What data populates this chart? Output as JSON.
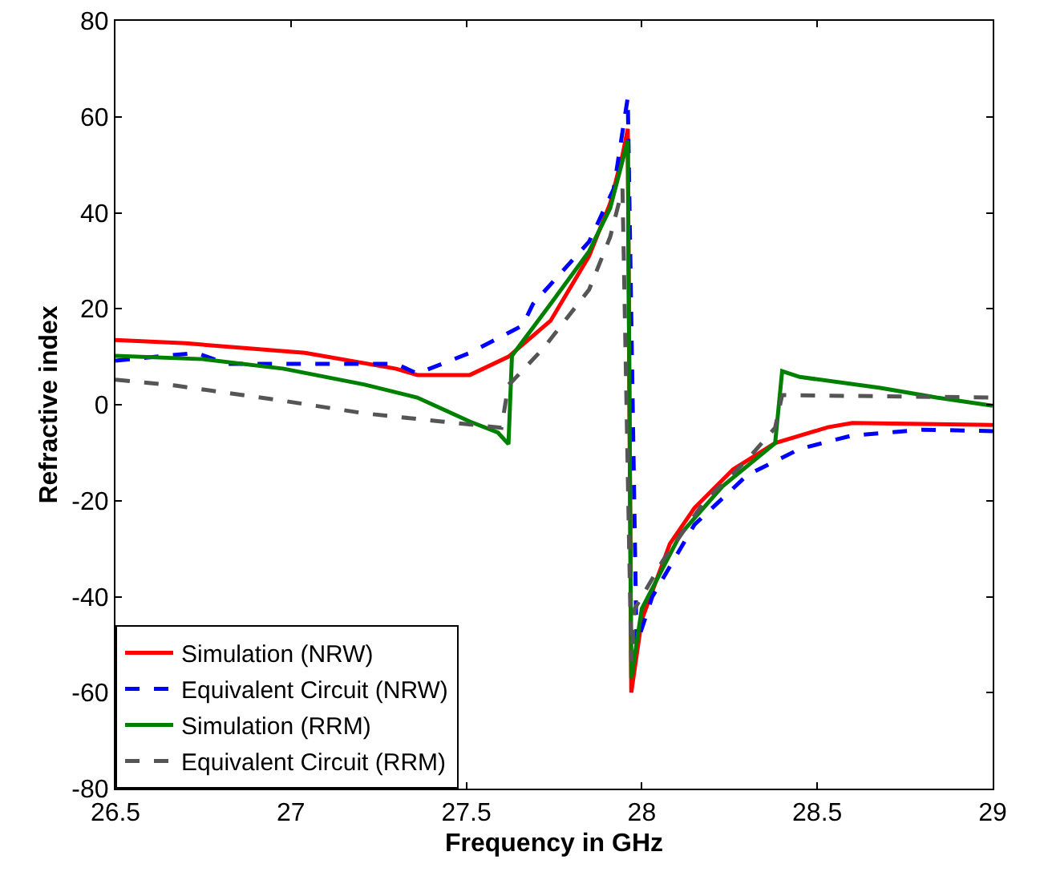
{
  "chart_data": {
    "type": "line",
    "xlabel": "Frequency in GHz",
    "ylabel": "Refractive index",
    "xlim": [
      26.5,
      29
    ],
    "xticks": [
      26.5,
      27,
      27.5,
      28,
      28.5,
      29
    ],
    "ylim": [
      -80,
      80
    ],
    "yticks": [
      -80,
      -60,
      -40,
      -20,
      0,
      20,
      40,
      60,
      80
    ],
    "grid": false,
    "legend": "bottom left",
    "marker": "none",
    "series": [
      {
        "name": "Simulation (NRW)",
        "color": "#ff0000",
        "line_style": "solid",
        "x": [
          26.5,
          26.7,
          27.04,
          27.3,
          27.36,
          27.51,
          27.62,
          27.74,
          27.85,
          27.91,
          27.945,
          27.96,
          27.97,
          28.0,
          28.08,
          28.15,
          28.26,
          28.38,
          28.53,
          28.6,
          29
        ],
        "values": [
          13.5,
          12.8,
          10.8,
          7.5,
          6.2,
          6.2,
          10,
          17.5,
          31,
          42,
          52,
          57.5,
          -60,
          -44.8,
          -29,
          -21.5,
          -13.5,
          -8,
          -4.7,
          -3.8,
          -4.2
        ]
      },
      {
        "name": "Equivalent Circuit (NRW)",
        "color": "#0000ff",
        "line_style": "dashed",
        "x": [
          26.5,
          26.73,
          26.82,
          27.3,
          27.36,
          27.51,
          27.66,
          27.69,
          27.85,
          27.92,
          27.96,
          27.985,
          28.03,
          28.15,
          28.3,
          28.45,
          28.6,
          28.8,
          29
        ],
        "values": [
          9.2,
          10.8,
          8.5,
          8.5,
          6.5,
          10.8,
          16.5,
          21,
          34,
          45,
          64,
          -50,
          -40,
          -25,
          -14.7,
          -9.2,
          -6.4,
          -5.2,
          -5.5
        ]
      },
      {
        "name": "Simulation (RRM)",
        "color": "#008000",
        "line_style": "solid",
        "x": [
          26.5,
          26.75,
          26.98,
          27.21,
          27.36,
          27.51,
          27.59,
          27.62,
          27.63,
          27.74,
          27.85,
          27.91,
          27.96,
          27.97,
          28.0,
          28.11,
          28.23,
          28.38,
          28.4,
          28.45,
          28.68,
          28.84,
          29
        ],
        "values": [
          10.2,
          9.5,
          7.5,
          4.2,
          1.5,
          -3.5,
          -5.8,
          -8.2,
          10.2,
          21,
          32,
          41,
          55,
          -57,
          -42.5,
          -27,
          -17,
          -8,
          7,
          5.8,
          3.5,
          1.5,
          -0.2
        ]
      },
      {
        "name": "Equivalent Circuit (RRM)",
        "color": "#555555",
        "line_style": "dashed",
        "x": [
          26.5,
          26.67,
          26.98,
          27.21,
          27.43,
          27.6,
          27.62,
          27.63,
          27.72,
          27.85,
          27.91,
          27.945,
          27.97,
          27.98,
          28.06,
          28.18,
          28.3,
          28.38,
          28.4,
          29
        ],
        "values": [
          5.2,
          4,
          0.8,
          -1.8,
          -3.5,
          -4.8,
          4.2,
          4.8,
          11.8,
          24,
          35,
          45,
          -53.5,
          -42.5,
          -32.5,
          -20,
          -11.5,
          -4.8,
          2,
          1.5
        ]
      }
    ]
  }
}
